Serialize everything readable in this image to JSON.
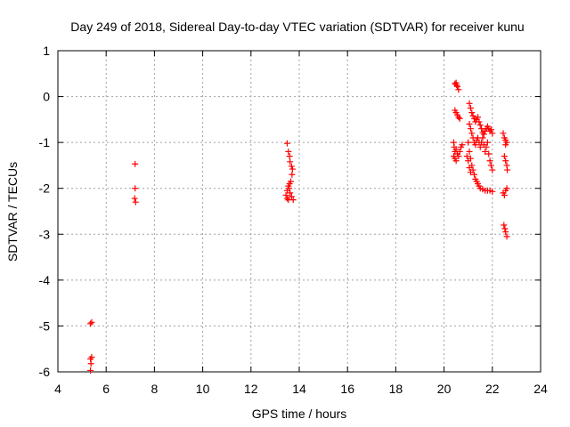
{
  "chart_data": {
    "type": "scatter",
    "title": "Day 249 of 2018, Sidereal Day-to-day VTEC variation (SDTVAR) for receiver kunu",
    "xlabel": "GPS time / hours",
    "ylabel": "SDTVAR / TECUs",
    "xlim": [
      4,
      24
    ],
    "ylim": [
      -6,
      1
    ],
    "xticks": [
      4,
      6,
      8,
      10,
      12,
      14,
      16,
      18,
      20,
      22,
      24
    ],
    "yticks": [
      1,
      0,
      -1,
      -2,
      -3,
      -4,
      -5,
      -6
    ],
    "xtick_labels": [
      "4",
      "6",
      "8",
      "10",
      "12",
      "14",
      "16",
      "18",
      "20",
      "22",
      "24"
    ],
    "ytick_labels": [
      "1",
      "0",
      "-1",
      "-2",
      "-3",
      "-4",
      "-5",
      "-6"
    ],
    "grid": true,
    "marker": "+",
    "color": "#ff0000",
    "series": [
      {
        "name": "SDTVAR",
        "points": [
          [
            5.35,
            -4.95
          ],
          [
            5.4,
            -4.92
          ],
          [
            5.35,
            -5.72
          ],
          [
            5.4,
            -5.68
          ],
          [
            5.37,
            -5.82
          ],
          [
            5.35,
            -5.97
          ],
          [
            7.2,
            -1.47
          ],
          [
            7.2,
            -2.0
          ],
          [
            7.18,
            -2.22
          ],
          [
            7.22,
            -2.3
          ],
          [
            13.5,
            -1.02
          ],
          [
            13.55,
            -1.2
          ],
          [
            13.6,
            -1.3
          ],
          [
            13.62,
            -1.42
          ],
          [
            13.68,
            -1.52
          ],
          [
            13.72,
            -1.58
          ],
          [
            13.7,
            -1.7
          ],
          [
            13.65,
            -1.85
          ],
          [
            13.55,
            -1.95
          ],
          [
            13.5,
            -2.05
          ],
          [
            13.45,
            -2.15
          ],
          [
            13.5,
            -2.22
          ],
          [
            13.58,
            -2.0
          ],
          [
            13.62,
            -2.1
          ],
          [
            13.68,
            -2.18
          ],
          [
            13.75,
            -2.25
          ],
          [
            13.55,
            -2.25
          ],
          [
            13.6,
            -1.9
          ],
          [
            20.45,
            0.28
          ],
          [
            20.5,
            0.3
          ],
          [
            20.55,
            0.22
          ],
          [
            20.6,
            0.15
          ],
          [
            20.52,
            0.25
          ],
          [
            20.45,
            -0.3
          ],
          [
            20.5,
            -0.35
          ],
          [
            20.55,
            -0.4
          ],
          [
            20.6,
            -0.45
          ],
          [
            20.65,
            -0.48
          ],
          [
            20.4,
            -1.0
          ],
          [
            20.42,
            -1.1
          ],
          [
            20.45,
            -1.2
          ],
          [
            20.5,
            -1.15
          ],
          [
            20.55,
            -1.25
          ],
          [
            20.4,
            -1.3
          ],
          [
            20.45,
            -1.35
          ],
          [
            20.5,
            -1.4
          ],
          [
            20.6,
            -1.3
          ],
          [
            20.65,
            -1.2
          ],
          [
            20.7,
            -1.1
          ],
          [
            20.75,
            -1.05
          ],
          [
            21.05,
            -0.15
          ],
          [
            21.1,
            -0.25
          ],
          [
            21.15,
            -0.35
          ],
          [
            21.2,
            -0.42
          ],
          [
            21.25,
            -0.48
          ],
          [
            21.3,
            -0.55
          ],
          [
            21.35,
            -0.5
          ],
          [
            21.4,
            -0.45
          ],
          [
            21.45,
            -0.55
          ],
          [
            21.5,
            -0.62
          ],
          [
            21.55,
            -0.7
          ],
          [
            21.6,
            -0.78
          ],
          [
            21.65,
            -0.82
          ],
          [
            21.7,
            -0.75
          ],
          [
            21.75,
            -0.7
          ],
          [
            21.8,
            -0.65
          ],
          [
            21.85,
            -0.7
          ],
          [
            21.9,
            -0.75
          ],
          [
            21.95,
            -0.72
          ],
          [
            22.0,
            -0.8
          ],
          [
            21.05,
            -0.6
          ],
          [
            21.1,
            -0.7
          ],
          [
            21.15,
            -0.8
          ],
          [
            21.2,
            -0.9
          ],
          [
            21.25,
            -1.0
          ],
          [
            21.3,
            -1.05
          ],
          [
            21.35,
            -0.95
          ],
          [
            21.4,
            -0.9
          ],
          [
            21.45,
            -1.0
          ],
          [
            21.5,
            -1.1
          ],
          [
            21.55,
            -1.0
          ],
          [
            21.6,
            -0.9
          ],
          [
            21.65,
            -1.05
          ],
          [
            21.7,
            -1.2
          ],
          [
            21.75,
            -1.1
          ],
          [
            21.8,
            -1.0
          ],
          [
            21.85,
            -1.25
          ],
          [
            21.9,
            -1.4
          ],
          [
            21.95,
            -1.5
          ],
          [
            22.0,
            -1.6
          ],
          [
            21.0,
            -1.0
          ],
          [
            21.05,
            -1.2
          ],
          [
            21.1,
            -1.35
          ],
          [
            21.15,
            -1.5
          ],
          [
            21.2,
            -1.6
          ],
          [
            21.25,
            -1.7
          ],
          [
            21.3,
            -1.8
          ],
          [
            21.35,
            -1.85
          ],
          [
            21.4,
            -1.9
          ],
          [
            21.45,
            -1.95
          ],
          [
            21.5,
            -2.0
          ],
          [
            21.6,
            -2.02
          ],
          [
            21.7,
            -2.05
          ],
          [
            21.8,
            -2.05
          ],
          [
            21.9,
            -2.05
          ],
          [
            22.0,
            -2.07
          ],
          [
            20.95,
            -1.3
          ],
          [
            21.0,
            -1.4
          ],
          [
            21.05,
            -1.55
          ],
          [
            21.1,
            -1.65
          ],
          [
            22.45,
            -0.8
          ],
          [
            22.5,
            -0.9
          ],
          [
            22.55,
            -0.95
          ],
          [
            22.6,
            -1.0
          ],
          [
            22.55,
            -1.05
          ],
          [
            22.5,
            -1.3
          ],
          [
            22.55,
            -1.4
          ],
          [
            22.6,
            -1.5
          ],
          [
            22.62,
            -1.6
          ],
          [
            22.45,
            -2.1
          ],
          [
            22.5,
            -2.15
          ],
          [
            22.55,
            -2.05
          ],
          [
            22.6,
            -2.0
          ],
          [
            22.48,
            -2.8
          ],
          [
            22.52,
            -2.88
          ],
          [
            22.55,
            -2.95
          ],
          [
            22.6,
            -3.05
          ]
        ]
      }
    ]
  }
}
